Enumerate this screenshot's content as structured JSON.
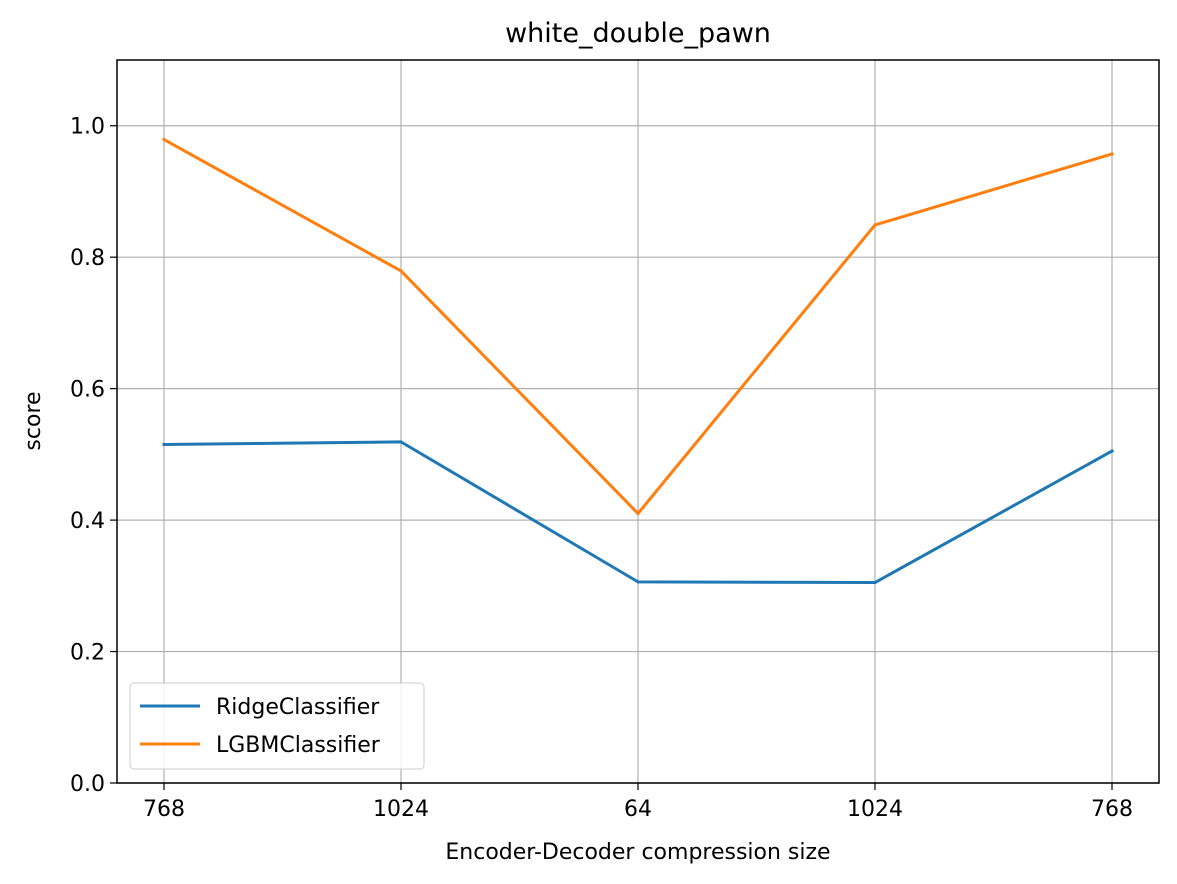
{
  "chart_data": {
    "type": "line",
    "title": "white_double_pawn",
    "xlabel": "Encoder-Decoder compression size",
    "ylabel": "score",
    "categories": [
      "768",
      "1024",
      "64",
      "1024",
      "768"
    ],
    "ylim": [
      0.0,
      1.1
    ],
    "yticks": [
      "0.0",
      "0.2",
      "0.4",
      "0.6",
      "0.8",
      "1.0"
    ],
    "grid": true,
    "legend_position": "lower-left",
    "series": [
      {
        "name": "RidgeClassifier",
        "color": "#1f77b4",
        "values": [
          0.515,
          0.519,
          0.306,
          0.305,
          0.505
        ]
      },
      {
        "name": "LGBMClassifier",
        "color": "#ff7f0e",
        "values": [
          0.979,
          0.779,
          0.41,
          0.849,
          0.957
        ]
      }
    ]
  }
}
